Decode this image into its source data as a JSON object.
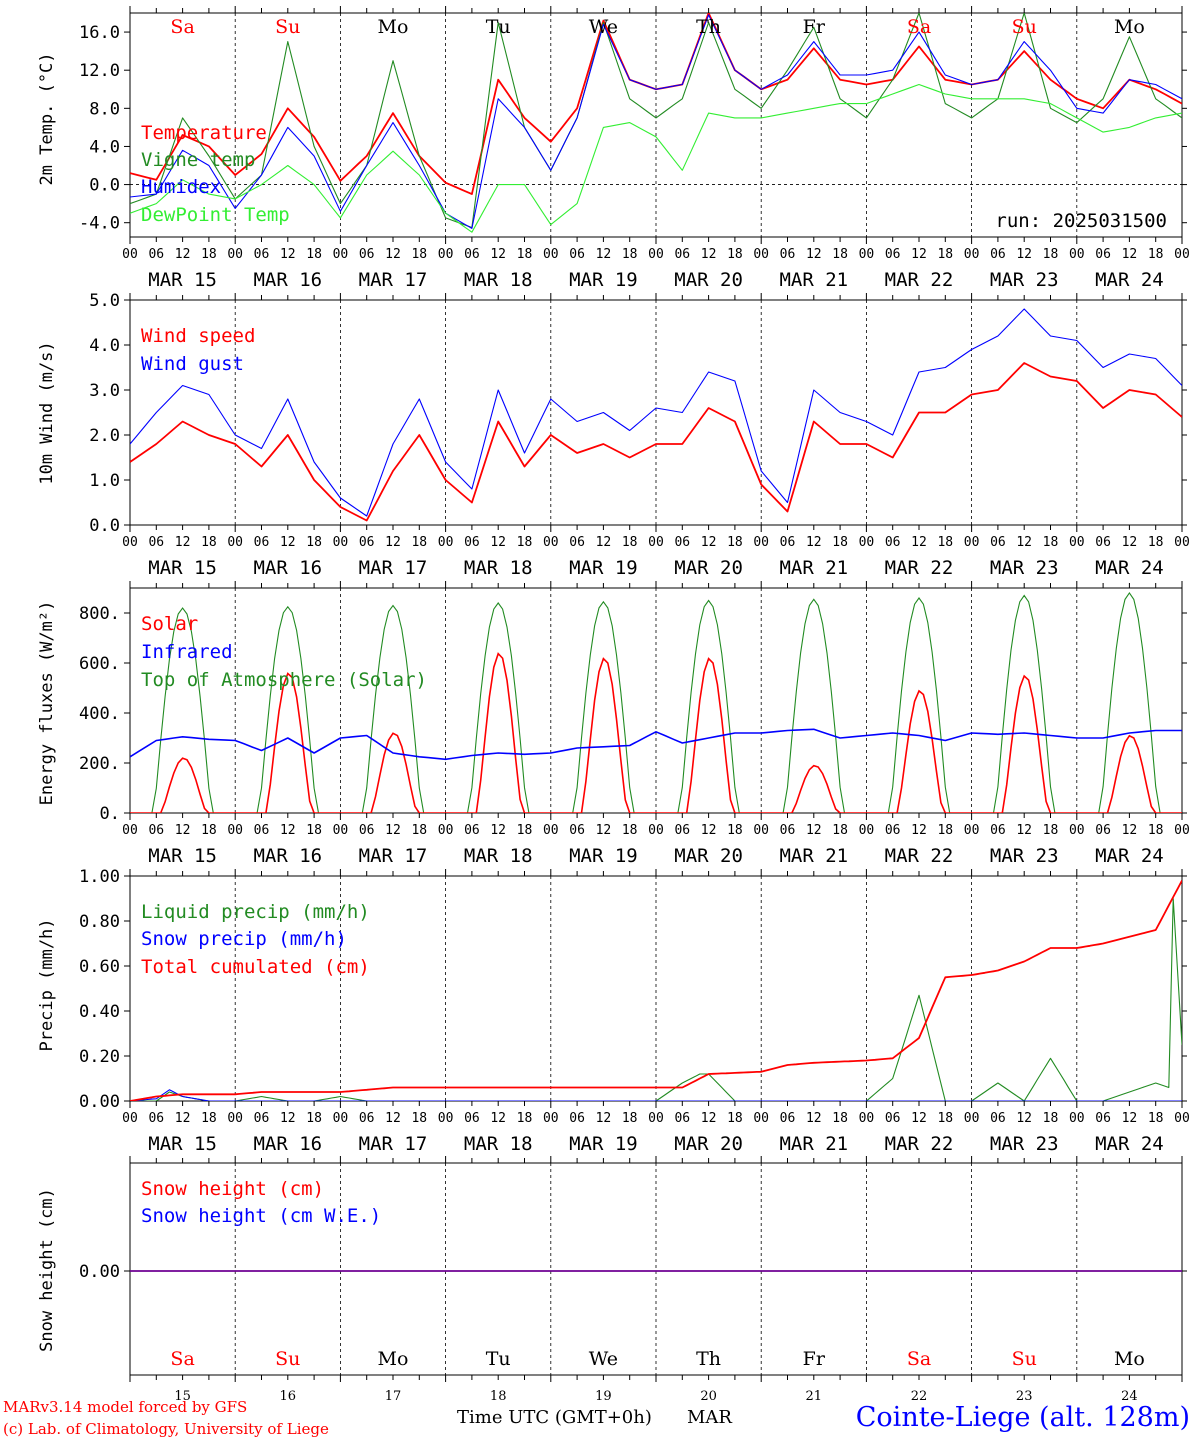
{
  "footer": {
    "model_line": "MARv3.14 model forced by GFS",
    "lab_line": "(c) Lab. of Climatology, University of Liege",
    "time_axis_label": "Time UTC (GMT+0h)",
    "month": "MAR",
    "station": "Cointe-Liege (alt. 128m)"
  },
  "run_label": "run: 2025031500",
  "colors": {
    "red": "#ff0000",
    "green": "#228b22",
    "blue": "#0000ff",
    "lightgreen": "#33ee33",
    "darkgreen": "#006400"
  },
  "day_labels": [
    {
      "name": "Sa",
      "weekend": true
    },
    {
      "name": "Su",
      "weekend": true
    },
    {
      "name": "Mo",
      "weekend": false
    },
    {
      "name": "Tu",
      "weekend": false
    },
    {
      "name": "We",
      "weekend": false
    },
    {
      "name": "Th",
      "weekend": false
    },
    {
      "name": "Fr",
      "weekend": false
    },
    {
      "name": "Sa",
      "weekend": true
    },
    {
      "name": "Su",
      "weekend": true
    },
    {
      "name": "Mo",
      "weekend": false
    }
  ],
  "date_labels": [
    "MAR 15",
    "MAR 16",
    "MAR 17",
    "MAR 18",
    "MAR 19",
    "MAR 20",
    "MAR 21",
    "MAR 22",
    "MAR 23",
    "MAR 24"
  ],
  "hour_ticks": [
    "00",
    "06",
    "12",
    "18"
  ],
  "day_numbers": [
    "15",
    "16",
    "17",
    "18",
    "19",
    "20",
    "21",
    "22",
    "23",
    "24"
  ],
  "chart_data": [
    {
      "type": "line",
      "ylabel": "2m Temp. (°C)",
      "ylim": [
        -5.5,
        18
      ],
      "yticks": [
        "16.0",
        "12.0",
        "8.0",
        "4.0",
        "0.0",
        "-4.0"
      ],
      "ytick_values": [
        16,
        12,
        8,
        4,
        0,
        -4
      ],
      "zero_line": true,
      "x_unit": "hours since 2025-03-15 00 UTC",
      "legend": [
        "Temperature",
        "Vigne temp",
        "Humidex",
        "DewPoint Temp"
      ],
      "series": [
        {
          "name": "Temperature",
          "color": "red",
          "x": [
            0,
            6,
            12,
            18,
            24,
            30,
            36,
            42,
            48,
            54,
            60,
            66,
            72,
            78,
            84,
            90,
            96,
            102,
            108,
            114,
            120,
            126,
            132,
            138,
            144,
            150,
            156,
            162,
            168,
            174,
            180,
            186,
            192,
            198,
            204,
            210,
            216,
            222,
            228,
            234,
            240
          ],
          "values": [
            1.2,
            0.5,
            5.2,
            4.0,
            1.0,
            3.2,
            8.0,
            5.0,
            0.4,
            3.0,
            7.5,
            3.0,
            0.2,
            -1.0,
            11.0,
            7.0,
            4.5,
            8.0,
            17.2,
            11.0,
            10.0,
            10.5,
            18.0,
            12.0,
            10.0,
            11.0,
            14.3,
            11.0,
            10.5,
            11.0,
            14.5,
            11.0,
            10.5,
            11.0,
            14.0,
            11.0,
            9.0,
            8.0,
            11.0,
            10.0,
            8.5
          ]
        },
        {
          "name": "Vigne temp",
          "color": "green",
          "x": [
            0,
            6,
            12,
            18,
            24,
            30,
            36,
            42,
            48,
            54,
            60,
            66,
            72,
            78,
            84,
            90,
            96,
            102,
            108,
            114,
            120,
            126,
            132,
            138,
            144,
            150,
            156,
            162,
            168,
            174,
            180,
            186,
            192,
            198,
            204,
            210,
            216,
            222,
            228,
            234,
            240
          ],
          "values": [
            -2.0,
            -1.0,
            7.0,
            3.0,
            -1.5,
            1.0,
            15.0,
            4.0,
            -2.0,
            2.0,
            13.0,
            3.0,
            -3.5,
            -4.5,
            17.0,
            6.0,
            1.5,
            7.0,
            17.0,
            9.0,
            7.0,
            9.0,
            17.0,
            10.0,
            8.0,
            12.0,
            16.5,
            9.0,
            7.0,
            11.0,
            18.0,
            8.5,
            7.0,
            9.0,
            18.0,
            8.0,
            6.5,
            9.0,
            15.5,
            9.0,
            7.0
          ]
        },
        {
          "name": "Humidex",
          "color": "blue",
          "x": [
            0,
            6,
            12,
            18,
            24,
            30,
            36,
            42,
            48,
            54,
            60,
            66,
            72,
            78,
            84,
            90,
            96,
            102,
            108,
            114,
            120,
            126,
            132,
            138,
            144,
            150,
            156,
            162,
            168,
            174,
            180,
            186,
            192,
            198,
            204,
            210,
            216,
            222,
            228,
            234,
            240
          ],
          "values": [
            -1.3,
            -1.0,
            3.6,
            2.0,
            -2.5,
            1.0,
            6.0,
            3.0,
            -2.8,
            2.0,
            6.5,
            2.0,
            -3.0,
            -4.6,
            9.0,
            6.0,
            1.5,
            7.0,
            16.8,
            11.0,
            10.0,
            10.5,
            17.8,
            12.0,
            10.0,
            11.5,
            15.0,
            11.5,
            11.5,
            12.0,
            16.0,
            11.5,
            10.5,
            11.0,
            15.0,
            12.0,
            8.0,
            7.5,
            11.0,
            10.5,
            9.0
          ]
        },
        {
          "name": "DewPoint Temp",
          "color": "lightgreen",
          "x": [
            0,
            6,
            12,
            18,
            24,
            30,
            36,
            42,
            48,
            54,
            60,
            66,
            72,
            78,
            84,
            90,
            96,
            102,
            108,
            114,
            120,
            126,
            132,
            138,
            144,
            150,
            156,
            162,
            168,
            174,
            180,
            186,
            192,
            198,
            204,
            210,
            216,
            222,
            228,
            234,
            240
          ],
          "values": [
            -3.0,
            -2.0,
            0.5,
            -1.0,
            -1.5,
            0.0,
            2.0,
            0.0,
            -3.5,
            1.0,
            3.5,
            1.0,
            -3.0,
            -5.0,
            0.0,
            0.0,
            -4.2,
            -2.0,
            6.0,
            6.5,
            5.0,
            1.5,
            7.5,
            7.0,
            7.0,
            7.5,
            8.0,
            8.5,
            8.5,
            9.5,
            10.5,
            9.5,
            9.0,
            9.0,
            9.0,
            8.5,
            7.0,
            5.5,
            6.0,
            7.0,
            7.5
          ]
        }
      ]
    },
    {
      "type": "line",
      "ylabel": "10m Wind (m/s)",
      "ylim": [
        0,
        5
      ],
      "yticks": [
        "5.0",
        "4.0",
        "3.0",
        "2.0",
        "1.0",
        "0.0"
      ],
      "ytick_values": [
        5,
        4,
        3,
        2,
        1,
        0
      ],
      "legend": [
        "Wind speed",
        "Wind gust"
      ],
      "series": [
        {
          "name": "Wind speed",
          "color": "red",
          "x": [
            0,
            6,
            12,
            18,
            24,
            30,
            36,
            42,
            48,
            54,
            60,
            66,
            72,
            78,
            84,
            90,
            96,
            102,
            108,
            114,
            120,
            126,
            132,
            138,
            144,
            150,
            156,
            162,
            168,
            174,
            180,
            186,
            192,
            198,
            204,
            210,
            216,
            222,
            228,
            234,
            240
          ],
          "values": [
            1.4,
            1.8,
            2.3,
            2.0,
            1.8,
            1.3,
            2.0,
            1.0,
            0.4,
            0.1,
            1.2,
            2.0,
            1.0,
            0.5,
            2.3,
            1.3,
            2.0,
            1.6,
            1.8,
            1.5,
            1.8,
            1.8,
            2.6,
            2.3,
            0.9,
            0.3,
            2.3,
            1.8,
            1.8,
            1.5,
            2.5,
            2.5,
            2.9,
            3.0,
            3.6,
            3.3,
            3.2,
            2.6,
            3.0,
            2.9,
            2.4
          ]
        },
        {
          "name": "Wind gust",
          "color": "blue",
          "x": [
            0,
            6,
            12,
            18,
            24,
            30,
            36,
            42,
            48,
            54,
            60,
            66,
            72,
            78,
            84,
            90,
            96,
            102,
            108,
            114,
            120,
            126,
            132,
            138,
            144,
            150,
            156,
            162,
            168,
            174,
            180,
            186,
            192,
            198,
            204,
            210,
            216,
            222,
            228,
            234,
            240
          ],
          "values": [
            1.8,
            2.5,
            3.1,
            2.9,
            2.0,
            1.7,
            2.8,
            1.4,
            0.6,
            0.2,
            1.8,
            2.8,
            1.4,
            0.8,
            3.0,
            1.6,
            2.8,
            2.3,
            2.5,
            2.1,
            2.6,
            2.5,
            3.4,
            3.2,
            1.2,
            0.5,
            3.0,
            2.5,
            2.3,
            2.0,
            3.4,
            3.5,
            3.9,
            4.2,
            4.8,
            4.2,
            4.1,
            3.5,
            3.8,
            3.7,
            3.1
          ]
        }
      ]
    },
    {
      "type": "line",
      "ylabel": "Energy fluxes (W/m²)",
      "ylim": [
        0,
        900
      ],
      "yticks": [
        "800.",
        "600.",
        "400.",
        "200.",
        "0."
      ],
      "ytick_values": [
        800,
        600,
        400,
        200,
        0
      ],
      "legend": [
        "Solar",
        "Infrared",
        "Top of Atmosphere (Solar)"
      ],
      "toa_peaks": [
        820,
        825,
        830,
        840,
        845,
        850,
        855,
        860,
        870,
        880
      ],
      "solar_peaks": [
        220,
        560,
        320,
        640,
        620,
        620,
        190,
        490,
        550,
        310
      ],
      "infrared": {
        "x": [
          0,
          6,
          12,
          18,
          24,
          30,
          36,
          42,
          48,
          54,
          60,
          66,
          72,
          78,
          84,
          90,
          96,
          102,
          108,
          114,
          120,
          126,
          132,
          138,
          144,
          150,
          156,
          162,
          168,
          174,
          180,
          186,
          192,
          198,
          204,
          210,
          216,
          222,
          228,
          234,
          240
        ],
        "values": [
          225,
          290,
          305,
          295,
          290,
          250,
          300,
          240,
          300,
          310,
          240,
          225,
          215,
          230,
          240,
          235,
          240,
          260,
          265,
          270,
          325,
          280,
          300,
          320,
          320,
          330,
          335,
          300,
          310,
          320,
          310,
          290,
          320,
          315,
          320,
          310,
          300,
          300,
          320,
          330,
          330
        ]
      }
    },
    {
      "type": "line",
      "ylabel": "Precip (mm/h)",
      "ylim": [
        0,
        1
      ],
      "yticks": [
        "1.00",
        "0.80",
        "0.60",
        "0.40",
        "0.20",
        "0.00"
      ],
      "ytick_values": [
        1,
        0.8,
        0.6,
        0.4,
        0.2,
        0
      ],
      "legend": [
        "Liquid precip (mm/h)",
        "Snow precip (mm/h)",
        "Total cumulated (cm)"
      ],
      "series": [
        {
          "name": "Liquid precip (mm/h)",
          "color": "green",
          "x": [
            0,
            6,
            9,
            12,
            18,
            24,
            30,
            36,
            42,
            48,
            54,
            60,
            114,
            120,
            126,
            130,
            132,
            138,
            144,
            150,
            156,
            162,
            168,
            174,
            180,
            186,
            192,
            198,
            204,
            210,
            216,
            222,
            228,
            234,
            237,
            238,
            240
          ],
          "values": [
            0,
            0,
            0.04,
            0.02,
            0,
            0,
            0.02,
            0,
            0,
            0.02,
            0,
            0,
            0,
            0,
            0.08,
            0.12,
            0.12,
            0,
            0,
            0,
            0,
            0,
            0,
            0.1,
            0.47,
            0,
            0,
            0.08,
            0,
            0.19,
            0,
            0,
            0.04,
            0.08,
            0.06,
            0.9,
            0.25
          ]
        },
        {
          "name": "Snow precip (mm/h)",
          "color": "blue",
          "x": [
            0,
            6,
            9,
            12,
            18,
            240
          ],
          "values": [
            0,
            0.01,
            0.05,
            0.02,
            0,
            0
          ]
        },
        {
          "name": "Total cumulated (cm)",
          "color": "red",
          "x": [
            0,
            6,
            12,
            24,
            30,
            36,
            48,
            54,
            60,
            96,
            120,
            126,
            132,
            144,
            150,
            156,
            168,
            174,
            180,
            186,
            192,
            198,
            204,
            210,
            216,
            222,
            228,
            234,
            240
          ],
          "values": [
            0,
            0.02,
            0.03,
            0.03,
            0.04,
            0.04,
            0.04,
            0.05,
            0.06,
            0.06,
            0.06,
            0.06,
            0.12,
            0.13,
            0.16,
            0.17,
            0.18,
            0.19,
            0.28,
            0.55,
            0.56,
            0.58,
            0.62,
            0.68,
            0.68,
            0.7,
            0.73,
            0.76,
            0.98
          ]
        }
      ]
    },
    {
      "type": "line",
      "ylabel": "Snow height (cm)",
      "yticks": [
        "0.00"
      ],
      "ytick_values": [
        0
      ],
      "legend": [
        "Snow height (cm)",
        "Snow height (cm W.E.)"
      ],
      "series": [
        {
          "name": "Snow height (cm)",
          "color": "red",
          "x": [
            0,
            240
          ],
          "values": [
            0,
            0
          ]
        },
        {
          "name": "Snow height (cm W.E.)",
          "color": "blue",
          "x": [
            0,
            240
          ],
          "values": [
            0,
            0
          ]
        }
      ]
    }
  ]
}
